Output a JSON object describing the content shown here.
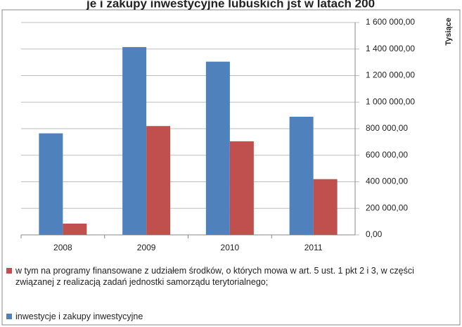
{
  "chart_data": {
    "type": "bar",
    "title": "je i zakupy inwestycyjne lubuskich jst w latach 200",
    "y_axis_label": "Tysiące",
    "categories": [
      "2008",
      "2009",
      "2010",
      "2011"
    ],
    "series": [
      {
        "name": "inwestycje i zakupy inwestycyjne",
        "color": "#4f81bd",
        "values": [
          765000,
          1415000,
          1305000,
          890000
        ]
      },
      {
        "name": "w tym na programy finansowane z udziałem środków, o których mowa w art. 5 ust. 1 pkt 2 i 3, w części związanej z realizacją zadań jednostki samorządu terytorialnego;",
        "color": "#c0504d",
        "values": [
          85000,
          820000,
          705000,
          420000
        ]
      }
    ],
    "ylim": [
      0,
      1600000
    ],
    "yticks": [
      {
        "value": 0,
        "label": "0,00"
      },
      {
        "value": 200000,
        "label": "200 000,00"
      },
      {
        "value": 400000,
        "label": "400 000,00"
      },
      {
        "value": 600000,
        "label": "600 000,00"
      },
      {
        "value": 800000,
        "label": "800 000,00"
      },
      {
        "value": 1000000,
        "label": "1 000 000,00"
      },
      {
        "value": 1200000,
        "label": "1 200 000,00"
      },
      {
        "value": 1400000,
        "label": "1 400 000,00"
      },
      {
        "value": 1600000,
        "label": "1 600 000,00"
      }
    ],
    "grid": true,
    "legend": "bottom"
  }
}
